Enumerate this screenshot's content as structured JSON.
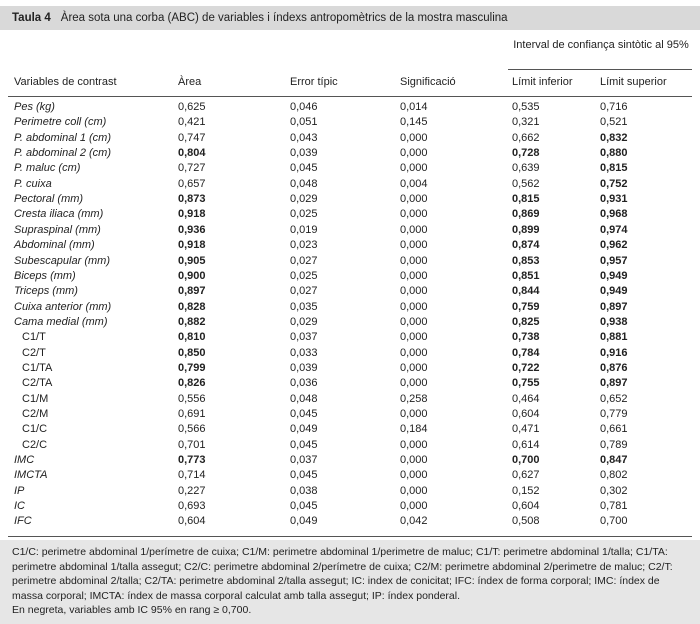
{
  "table": {
    "label": "Taula 4",
    "title": "Àrea sota una corba (ABC) de variables i índexs antropomètrics de la mostra masculina",
    "group_header": "Interval de confiança sintòtic al 95%",
    "columns": [
      "Variables de contrast",
      "Àrea",
      "Error típic",
      "Significació",
      "Límit inferior",
      "Límit superior"
    ],
    "rows": [
      {
        "cells": [
          "Pes (kg)",
          "0,625",
          "0,046",
          "0,014",
          "0,535",
          "0,716"
        ],
        "italic": true,
        "bold_cols": []
      },
      {
        "cells": [
          "Perimetre coll (cm)",
          "0,421",
          "0,051",
          "0,145",
          "0,321",
          "0,521"
        ],
        "italic": true,
        "bold_cols": []
      },
      {
        "cells": [
          "P. abdominal 1 (cm)",
          "0,747",
          "0,043",
          "0,000",
          "0,662",
          "0,832"
        ],
        "italic": true,
        "bold_cols": [
          5
        ]
      },
      {
        "cells": [
          "P. abdominal 2 (cm)",
          "0,804",
          "0,039",
          "0,000",
          "0,728",
          "0,880"
        ],
        "italic": true,
        "bold_cols": [
          1,
          4,
          5
        ]
      },
      {
        "cells": [
          "P. maluc (cm)",
          "0,727",
          "0,045",
          "0,000",
          "0,639",
          "0,815"
        ],
        "italic": true,
        "bold_cols": [
          5
        ]
      },
      {
        "cells": [
          "P. cuixa",
          "0,657",
          "0,048",
          "0,004",
          "0,562",
          "0,752"
        ],
        "italic": true,
        "bold_cols": [
          5
        ]
      },
      {
        "cells": [
          "Pectoral (mm)",
          "0,873",
          "0,029",
          "0,000",
          "0,815",
          "0,931"
        ],
        "italic": true,
        "bold_cols": [
          1,
          4,
          5
        ]
      },
      {
        "cells": [
          "Cresta iliaca (mm)",
          "0,918",
          "0,025",
          "0,000",
          "0,869",
          "0,968"
        ],
        "italic": true,
        "bold_cols": [
          1,
          4,
          5
        ]
      },
      {
        "cells": [
          "Supraspinal (mm)",
          "0,936",
          "0,019",
          "0,000",
          "0,899",
          "0,974"
        ],
        "italic": true,
        "bold_cols": [
          1,
          4,
          5
        ]
      },
      {
        "cells": [
          "Abdominal (mm)",
          "0,918",
          "0,023",
          "0,000",
          "0,874",
          "0,962"
        ],
        "italic": true,
        "bold_cols": [
          1,
          4,
          5
        ]
      },
      {
        "cells": [
          "Subescapular (mm)",
          "0,905",
          "0,027",
          "0,000",
          "0,853",
          "0,957"
        ],
        "italic": true,
        "bold_cols": [
          1,
          4,
          5
        ]
      },
      {
        "cells": [
          "Biceps (mm)",
          "0,900",
          "0,025",
          "0,000",
          "0,851",
          "0,949"
        ],
        "italic": true,
        "bold_cols": [
          1,
          4,
          5
        ]
      },
      {
        "cells": [
          "Triceps (mm)",
          "0,897",
          "0,027",
          "0,000",
          "0,844",
          "0,949"
        ],
        "italic": true,
        "bold_cols": [
          1,
          4,
          5
        ]
      },
      {
        "cells": [
          "Cuixa anterior (mm)",
          "0,828",
          "0,035",
          "0,000",
          "0,759",
          "0,897"
        ],
        "italic": true,
        "bold_cols": [
          1,
          4,
          5
        ]
      },
      {
        "cells": [
          "Cama medial (mm)",
          "0,882",
          "0,029",
          "0,000",
          "0,825",
          "0,938"
        ],
        "italic": true,
        "bold_cols": [
          1,
          4,
          5
        ]
      },
      {
        "cells": [
          "C1/T",
          "0,810",
          "0,037",
          "0,000",
          "0,738",
          "0,881"
        ],
        "italic": false,
        "bold_cols": [
          1,
          4,
          5
        ]
      },
      {
        "cells": [
          "C2/T",
          "0,850",
          "0,033",
          "0,000",
          "0,784",
          "0,916"
        ],
        "italic": false,
        "bold_cols": [
          1,
          4,
          5
        ]
      },
      {
        "cells": [
          "C1/TA",
          "0,799",
          "0,039",
          "0,000",
          "0,722",
          "0,876"
        ],
        "italic": false,
        "bold_cols": [
          1,
          4,
          5
        ]
      },
      {
        "cells": [
          "C2/TA",
          "0,826",
          "0,036",
          "0,000",
          "0,755",
          "0,897"
        ],
        "italic": false,
        "bold_cols": [
          1,
          4,
          5
        ]
      },
      {
        "cells": [
          "C1/M",
          "0,556",
          "0,048",
          "0,258",
          "0,464",
          "0,652"
        ],
        "italic": false,
        "bold_cols": []
      },
      {
        "cells": [
          "C2/M",
          "0,691",
          "0,045",
          "0,000",
          "0,604",
          "0,779"
        ],
        "italic": false,
        "bold_cols": []
      },
      {
        "cells": [
          "C1/C",
          "0,566",
          "0,049",
          "0,184",
          "0,471",
          "0,661"
        ],
        "italic": false,
        "bold_cols": []
      },
      {
        "cells": [
          "C2/C",
          "0,701",
          "0,045",
          "0,000",
          "0,614",
          "0,789"
        ],
        "italic": false,
        "bold_cols": []
      },
      {
        "cells": [
          "IMC",
          "0,773",
          "0,037",
          "0,000",
          "0,700",
          "0,847"
        ],
        "italic": true,
        "bold_cols": [
          1,
          4,
          5
        ]
      },
      {
        "cells": [
          "IMCTA",
          "0,714",
          "0,045",
          "0,000",
          "0,627",
          "0,802"
        ],
        "italic": true,
        "bold_cols": []
      },
      {
        "cells": [
          "IP",
          "0,227",
          "0,038",
          "0,000",
          "0,152",
          "0,302"
        ],
        "italic": true,
        "bold_cols": []
      },
      {
        "cells": [
          "IC",
          "0,693",
          "0,045",
          "0,000",
          "0,604",
          "0,781"
        ],
        "italic": true,
        "bold_cols": []
      },
      {
        "cells": [
          "IFC",
          "0,604",
          "0,049",
          "0,042",
          "0,508",
          "0,700"
        ],
        "italic": true,
        "bold_cols": []
      }
    ],
    "notes": [
      "C1/C: perimetre abdominal 1/perímetre de cuixa; C1/M: perimetre abdominal 1/perimetre de maluc; C1/T: perimetre abdominal 1/talla; C1/TA: perimetre abdominal 1/talla assegut; C2/C: perimetre abdominal 2/perímetre de cuixa; C2/M: perimetre abdominal 2/perimetre de maluc; C2/T: perimetre abdominal 2/talla; C2/TA: perimetre abdominal 2/talla assegut; IC: index de conicitat; IFC: índex de forma corporal; IMC: índex de massa corporal; IMCTA: índex de massa corporal calculat amb talla assegut; IP: índex ponderal.",
      "En negreta, variables amb IC 95% en rang ≥ 0,700."
    ]
  }
}
